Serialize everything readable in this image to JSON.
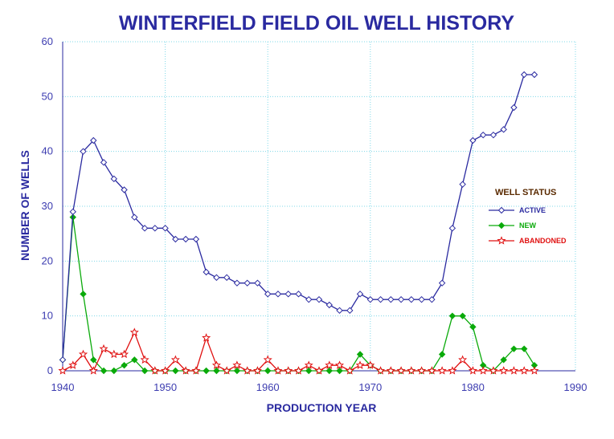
{
  "chart_data": {
    "type": "line",
    "title": "WINTERFIELD FIELD OIL WELL HISTORY",
    "xlabel": "PRODUCTION YEAR",
    "ylabel": "NUMBER OF WELLS",
    "xlim": [
      1940,
      1990
    ],
    "ylim": [
      0,
      60
    ],
    "xticks": [
      1940,
      1950,
      1960,
      1970,
      1980,
      1990
    ],
    "yticks": [
      0,
      10,
      20,
      30,
      40,
      50,
      60
    ],
    "grid": true,
    "legend": {
      "title": "WELL STATUS",
      "placement": "right"
    },
    "series": [
      {
        "name": "ACTIVE",
        "color": "#2a2aa0",
        "marker": "diamond-open",
        "x": [
          1940,
          1941,
          1942,
          1943,
          1944,
          1945,
          1946,
          1947,
          1948,
          1949,
          1950,
          1951,
          1952,
          1953,
          1954,
          1955,
          1956,
          1957,
          1958,
          1959,
          1960,
          1961,
          1962,
          1963,
          1964,
          1965,
          1966,
          1967,
          1968,
          1969,
          1970,
          1971,
          1972,
          1973,
          1974,
          1975,
          1976,
          1977,
          1978,
          1979,
          1980,
          1981,
          1982,
          1983,
          1984,
          1985,
          1986
        ],
        "values": [
          2,
          29,
          40,
          42,
          38,
          35,
          33,
          28,
          26,
          26,
          26,
          24,
          24,
          24,
          18,
          17,
          17,
          16,
          16,
          16,
          14,
          14,
          14,
          14,
          13,
          13,
          12,
          11,
          11,
          14,
          13,
          13,
          13,
          13,
          13,
          13,
          13,
          16,
          26,
          34,
          42,
          43,
          43,
          44,
          48,
          54,
          54
        ]
      },
      {
        "name": "NEW",
        "color": "#0aaa0a",
        "marker": "diamond-filled",
        "x": [
          1940,
          1941,
          1942,
          1943,
          1944,
          1945,
          1946,
          1947,
          1948,
          1949,
          1950,
          1951,
          1952,
          1953,
          1954,
          1955,
          1956,
          1957,
          1958,
          1959,
          1960,
          1961,
          1962,
          1963,
          1964,
          1965,
          1966,
          1967,
          1968,
          1969,
          1970,
          1971,
          1972,
          1973,
          1974,
          1975,
          1976,
          1977,
          1978,
          1979,
          1980,
          1981,
          1982,
          1983,
          1984,
          1985,
          1986
        ],
        "values": [
          2,
          28,
          14,
          2,
          0,
          0,
          1,
          2,
          0,
          0,
          0,
          0,
          0,
          0,
          0,
          0,
          0,
          0,
          0,
          0,
          0,
          0,
          0,
          0,
          0,
          0,
          0,
          0,
          0,
          3,
          1,
          0,
          0,
          0,
          0,
          0,
          0,
          3,
          10,
          10,
          8,
          1,
          0,
          2,
          4,
          4,
          1
        ]
      },
      {
        "name": "ABANDONED",
        "color": "#e01010",
        "marker": "star-open",
        "x": [
          1940,
          1941,
          1942,
          1943,
          1944,
          1945,
          1946,
          1947,
          1948,
          1949,
          1950,
          1951,
          1952,
          1953,
          1954,
          1955,
          1956,
          1957,
          1958,
          1959,
          1960,
          1961,
          1962,
          1963,
          1964,
          1965,
          1966,
          1967,
          1968,
          1969,
          1970,
          1971,
          1972,
          1973,
          1974,
          1975,
          1976,
          1977,
          1978,
          1979,
          1980,
          1981,
          1982,
          1983,
          1984,
          1985,
          1986
        ],
        "values": [
          0,
          1,
          3,
          0,
          4,
          3,
          3,
          7,
          2,
          0,
          0,
          2,
          0,
          0,
          6,
          1,
          0,
          1,
          0,
          0,
          2,
          0,
          0,
          0,
          1,
          0,
          1,
          1,
          0,
          1,
          1,
          0,
          0,
          0,
          0,
          0,
          0,
          0,
          0,
          2,
          0,
          0,
          0,
          0,
          0,
          0,
          0
        ]
      }
    ]
  }
}
